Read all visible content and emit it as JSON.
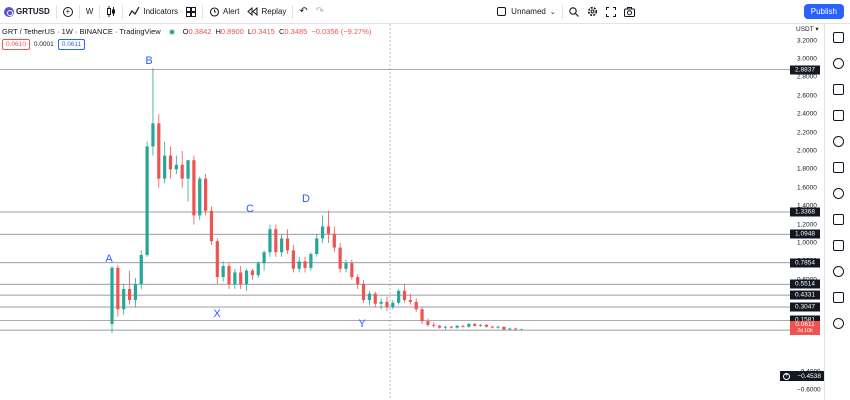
{
  "toolbar": {
    "symbol": "GRTUSD",
    "interval": "W",
    "indicators_label": "Indicators",
    "alert_label": "Alert",
    "replay_label": "Replay",
    "layout_name": "Unnamed",
    "publish_label": "Publish"
  },
  "legend": {
    "title": "GRT / TetherUS · 1W · BINANCE · TradingView",
    "open_key": "O",
    "open": "0.3842",
    "high_key": "H",
    "high": "0.8900",
    "low_key": "L",
    "low": "0.3415",
    "close_key": "C",
    "close": "0.3485",
    "change": "−0.0356 (−9.27%)",
    "sell_price": "0.0610",
    "spread": "0.0001",
    "buy_price": "0.0611"
  },
  "price_scale": {
    "currency": "USDT",
    "ticks": [
      "3.2000",
      "3.0000",
      "2.8000",
      "2.6000",
      "2.4000",
      "2.2000",
      "2.0000",
      "1.8000",
      "1.6000",
      "1.4000",
      "1.2000",
      "1.0000",
      "0.8000",
      "0.6000",
      "−0.4000",
      "−0.6000"
    ],
    "levels": [
      "2.8837",
      "1.3368",
      "1.0948",
      "0.7854",
      "0.5514",
      "0.4331",
      "0.3047",
      "0.1581",
      "0.0532"
    ],
    "last_price": "0.0611",
    "countdown": "2d 10h",
    "cursor_price": "−0.4538"
  },
  "colors": {
    "up": "#26a69a",
    "down": "#ef5350",
    "wave_label": "#2962ff",
    "accent": "#2962ff"
  },
  "chart_data": {
    "type": "candlestick",
    "symbol": "GRT / TetherUS",
    "timeframe": "1W",
    "exchange": "BINANCE",
    "ylim": [
      -0.65,
      3.3
    ],
    "horizontal_levels": [
      2.8837,
      1.3368,
      1.0948,
      0.7854,
      0.5514,
      0.4331,
      0.3047,
      0.1581,
      0.0532
    ],
    "wave_labels": [
      {
        "text": "A",
        "price": 0.83
      },
      {
        "text": "B",
        "price": 2.98
      },
      {
        "text": "X",
        "price": 0.23
      },
      {
        "text": "C",
        "price": 1.37
      },
      {
        "text": "D",
        "price": 1.48
      },
      {
        "text": "Y",
        "price": 0.12
      }
    ],
    "candles": [
      {
        "o": 0.12,
        "h": 0.75,
        "l": 0.02,
        "c": 0.73
      },
      {
        "o": 0.73,
        "h": 0.76,
        "l": 0.2,
        "c": 0.28
      },
      {
        "o": 0.28,
        "h": 0.55,
        "l": 0.22,
        "c": 0.5
      },
      {
        "o": 0.5,
        "h": 0.7,
        "l": 0.33,
        "c": 0.38
      },
      {
        "o": 0.38,
        "h": 0.62,
        "l": 0.3,
        "c": 0.55
      },
      {
        "o": 0.55,
        "h": 0.92,
        "l": 0.5,
        "c": 0.87
      },
      {
        "o": 0.87,
        "h": 2.1,
        "l": 0.85,
        "c": 2.05
      },
      {
        "o": 2.05,
        "h": 2.9,
        "l": 1.95,
        "c": 2.3
      },
      {
        "o": 2.3,
        "h": 2.4,
        "l": 1.6,
        "c": 1.7
      },
      {
        "o": 1.7,
        "h": 2.1,
        "l": 1.65,
        "c": 1.95
      },
      {
        "o": 1.95,
        "h": 2.05,
        "l": 1.7,
        "c": 1.8
      },
      {
        "o": 1.8,
        "h": 1.95,
        "l": 1.75,
        "c": 1.85
      },
      {
        "o": 1.85,
        "h": 2.0,
        "l": 1.6,
        "c": 1.7
      },
      {
        "o": 1.7,
        "h": 1.9,
        "l": 1.45,
        "c": 1.9
      },
      {
        "o": 1.9,
        "h": 1.95,
        "l": 1.2,
        "c": 1.3
      },
      {
        "o": 1.3,
        "h": 1.72,
        "l": 1.25,
        "c": 1.7
      },
      {
        "o": 1.7,
        "h": 1.75,
        "l": 1.3,
        "c": 1.35
      },
      {
        "o": 1.35,
        "h": 1.4,
        "l": 0.98,
        "c": 1.02
      },
      {
        "o": 1.02,
        "h": 1.05,
        "l": 0.55,
        "c": 0.63
      },
      {
        "o": 0.63,
        "h": 0.8,
        "l": 0.58,
        "c": 0.75
      },
      {
        "o": 0.75,
        "h": 0.78,
        "l": 0.5,
        "c": 0.55
      },
      {
        "o": 0.55,
        "h": 0.72,
        "l": 0.5,
        "c": 0.68
      },
      {
        "o": 0.68,
        "h": 0.75,
        "l": 0.5,
        "c": 0.55
      },
      {
        "o": 0.55,
        "h": 0.72,
        "l": 0.48,
        "c": 0.7
      },
      {
        "o": 0.7,
        "h": 0.72,
        "l": 0.6,
        "c": 0.65
      },
      {
        "o": 0.65,
        "h": 0.8,
        "l": 0.62,
        "c": 0.78
      },
      {
        "o": 0.78,
        "h": 0.92,
        "l": 0.7,
        "c": 0.9
      },
      {
        "o": 0.9,
        "h": 1.2,
        "l": 0.85,
        "c": 1.15
      },
      {
        "o": 1.15,
        "h": 1.2,
        "l": 0.85,
        "c": 0.9
      },
      {
        "o": 0.9,
        "h": 1.1,
        "l": 0.85,
        "c": 1.05
      },
      {
        "o": 1.05,
        "h": 1.15,
        "l": 0.88,
        "c": 0.92
      },
      {
        "o": 0.92,
        "h": 0.98,
        "l": 0.68,
        "c": 0.72
      },
      {
        "o": 0.72,
        "h": 0.85,
        "l": 0.68,
        "c": 0.8
      },
      {
        "o": 0.8,
        "h": 0.85,
        "l": 0.68,
        "c": 0.73
      },
      {
        "o": 0.73,
        "h": 0.9,
        "l": 0.7,
        "c": 0.88
      },
      {
        "o": 0.88,
        "h": 1.1,
        "l": 0.85,
        "c": 1.05
      },
      {
        "o": 1.05,
        "h": 1.3,
        "l": 1.0,
        "c": 1.18
      },
      {
        "o": 1.18,
        "h": 1.35,
        "l": 1.0,
        "c": 1.1
      },
      {
        "o": 1.1,
        "h": 1.18,
        "l": 0.9,
        "c": 0.95
      },
      {
        "o": 0.95,
        "h": 1.0,
        "l": 0.68,
        "c": 0.72
      },
      {
        "o": 0.72,
        "h": 0.82,
        "l": 0.68,
        "c": 0.78
      },
      {
        "o": 0.78,
        "h": 0.82,
        "l": 0.6,
        "c": 0.63
      },
      {
        "o": 0.63,
        "h": 0.66,
        "l": 0.5,
        "c": 0.55
      },
      {
        "o": 0.55,
        "h": 0.6,
        "l": 0.35,
        "c": 0.38
      },
      {
        "o": 0.38,
        "h": 0.48,
        "l": 0.32,
        "c": 0.45
      },
      {
        "o": 0.45,
        "h": 0.47,
        "l": 0.3,
        "c": 0.34
      },
      {
        "o": 0.34,
        "h": 0.4,
        "l": 0.28,
        "c": 0.36
      },
      {
        "o": 0.36,
        "h": 0.42,
        "l": 0.26,
        "c": 0.3
      },
      {
        "o": 0.3,
        "h": 0.38,
        "l": 0.28,
        "c": 0.35
      },
      {
        "o": 0.35,
        "h": 0.5,
        "l": 0.33,
        "c": 0.48
      },
      {
        "o": 0.48,
        "h": 0.55,
        "l": 0.35,
        "c": 0.38
      },
      {
        "o": 0.38,
        "h": 0.45,
        "l": 0.33,
        "c": 0.36
      },
      {
        "o": 0.36,
        "h": 0.4,
        "l": 0.25,
        "c": 0.28
      },
      {
        "o": 0.28,
        "h": 0.3,
        "l": 0.12,
        "c": 0.15
      },
      {
        "o": 0.15,
        "h": 0.18,
        "l": 0.09,
        "c": 0.11
      },
      {
        "o": 0.11,
        "h": 0.14,
        "l": 0.08,
        "c": 0.1
      },
      {
        "o": 0.1,
        "h": 0.11,
        "l": 0.07,
        "c": 0.08
      },
      {
        "o": 0.08,
        "h": 0.1,
        "l": 0.06,
        "c": 0.09
      },
      {
        "o": 0.09,
        "h": 0.1,
        "l": 0.07,
        "c": 0.08
      },
      {
        "o": 0.08,
        "h": 0.11,
        "l": 0.07,
        "c": 0.1
      },
      {
        "o": 0.1,
        "h": 0.11,
        "l": 0.08,
        "c": 0.09
      },
      {
        "o": 0.09,
        "h": 0.13,
        "l": 0.08,
        "c": 0.12
      },
      {
        "o": 0.12,
        "h": 0.13,
        "l": 0.09,
        "c": 0.1
      },
      {
        "o": 0.1,
        "h": 0.12,
        "l": 0.09,
        "c": 0.11
      },
      {
        "o": 0.11,
        "h": 0.12,
        "l": 0.08,
        "c": 0.09
      },
      {
        "o": 0.09,
        "h": 0.1,
        "l": 0.07,
        "c": 0.08
      },
      {
        "o": 0.08,
        "h": 0.1,
        "l": 0.07,
        "c": 0.09
      },
      {
        "o": 0.09,
        "h": 0.09,
        "l": 0.05,
        "c": 0.06
      },
      {
        "o": 0.06,
        "h": 0.08,
        "l": 0.05,
        "c": 0.07
      },
      {
        "o": 0.07,
        "h": 0.08,
        "l": 0.05,
        "c": 0.06
      },
      {
        "o": 0.06,
        "h": 0.07,
        "l": 0.05,
        "c": 0.061
      }
    ]
  }
}
